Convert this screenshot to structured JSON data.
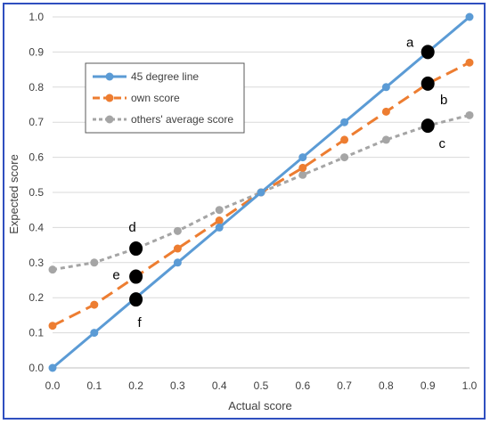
{
  "chart_data": {
    "type": "line",
    "xlabel": "Actual score",
    "ylabel": "Expected score",
    "xlim": [
      0.0,
      1.0
    ],
    "ylim": [
      0.0,
      1.0
    ],
    "x_ticks": [
      "0.0",
      "0.1",
      "0.2",
      "0.3",
      "0.4",
      "0.5",
      "0.6",
      "0.7",
      "0.8",
      "0.9",
      "1.0"
    ],
    "y_ticks": [
      "0.0",
      "0.1",
      "0.2",
      "0.3",
      "0.4",
      "0.5",
      "0.6",
      "0.7",
      "0.8",
      "0.9",
      "1.0"
    ],
    "grid": "horizontal",
    "legend_position": "top-left",
    "series": [
      {
        "name": "45 degree line",
        "color": "#5b9bd5",
        "dash": "solid",
        "x": [
          0.0,
          0.1,
          0.2,
          0.3,
          0.4,
          0.5,
          0.6,
          0.7,
          0.8,
          0.9,
          1.0
        ],
        "y": [
          0.0,
          0.1,
          0.2,
          0.3,
          0.4,
          0.5,
          0.6,
          0.7,
          0.8,
          0.9,
          1.0
        ]
      },
      {
        "name": "own score",
        "color": "#ed7d31",
        "dash": "long-dash",
        "x": [
          0.0,
          0.1,
          0.2,
          0.3,
          0.4,
          0.5,
          0.6,
          0.7,
          0.8,
          0.9,
          1.0
        ],
        "y": [
          0.12,
          0.18,
          0.26,
          0.34,
          0.42,
          0.5,
          0.57,
          0.65,
          0.73,
          0.81,
          0.87
        ]
      },
      {
        "name": "others' average score",
        "color": "#a5a5a5",
        "dash": "short-dash",
        "x": [
          0.0,
          0.1,
          0.2,
          0.3,
          0.4,
          0.5,
          0.6,
          0.7,
          0.8,
          0.9,
          1.0
        ],
        "y": [
          0.28,
          0.3,
          0.34,
          0.39,
          0.45,
          0.5,
          0.55,
          0.6,
          0.65,
          0.69,
          0.72
        ]
      }
    ],
    "annotations": [
      {
        "label": "a",
        "x": 0.9,
        "y": 0.9
      },
      {
        "label": "b",
        "x": 0.9,
        "y": 0.81
      },
      {
        "label": "c",
        "x": 0.9,
        "y": 0.69
      },
      {
        "label": "d",
        "x": 0.2,
        "y": 0.34
      },
      {
        "label": "e",
        "x": 0.2,
        "y": 0.26
      },
      {
        "label": "f",
        "x": 0.2,
        "y": 0.195
      }
    ]
  }
}
